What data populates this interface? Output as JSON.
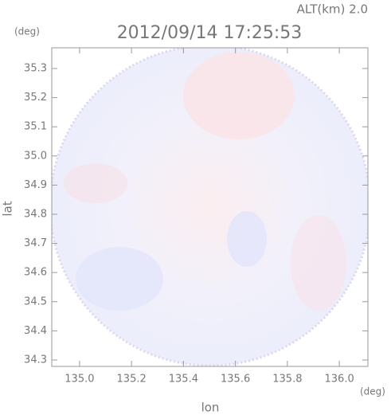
{
  "chart_data": {
    "type": "image",
    "title": "2012/09/14 17:25:53",
    "annotation": "ALT(km) 2.0",
    "x_label": "lon",
    "y_label": "lat",
    "x_unit": "(deg)",
    "y_unit": "(deg)",
    "xlim": [
      134.893,
      136.11
    ],
    "ylim": [
      34.278,
      35.371
    ],
    "xticks": [
      {
        "value": 135,
        "label": "135.0"
      },
      135.2,
      135.4,
      135.6,
      135.8,
      {
        "value": 136,
        "label": "136.0"
      }
    ],
    "yticks": [
      34.3,
      34.4,
      34.5,
      34.6,
      34.7,
      34.8,
      34.9,
      {
        "value": 35,
        "label": "35.0"
      },
      35.1,
      35.2,
      35.3
    ]
  }
}
